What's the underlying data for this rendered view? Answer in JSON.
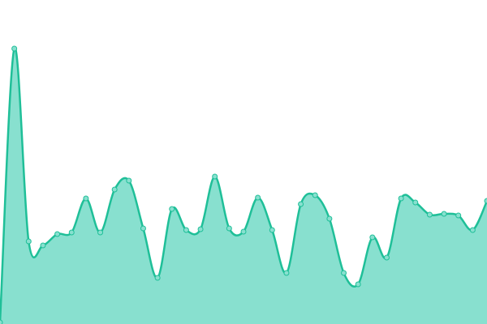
{
  "chart_data": {
    "type": "area",
    "values": [
      2,
      340,
      102,
      97,
      111,
      113,
      155,
      113,
      166,
      177,
      118,
      57,
      142,
      116,
      117,
      182,
      118,
      114,
      156,
      116,
      63,
      148,
      159,
      130,
      63,
      49,
      107,
      82,
      155,
      150,
      135,
      136,
      134,
      116,
      152
    ],
    "ylim": [
      0,
      400
    ],
    "color": "#1fbf98",
    "fill": "#88e0cf"
  }
}
